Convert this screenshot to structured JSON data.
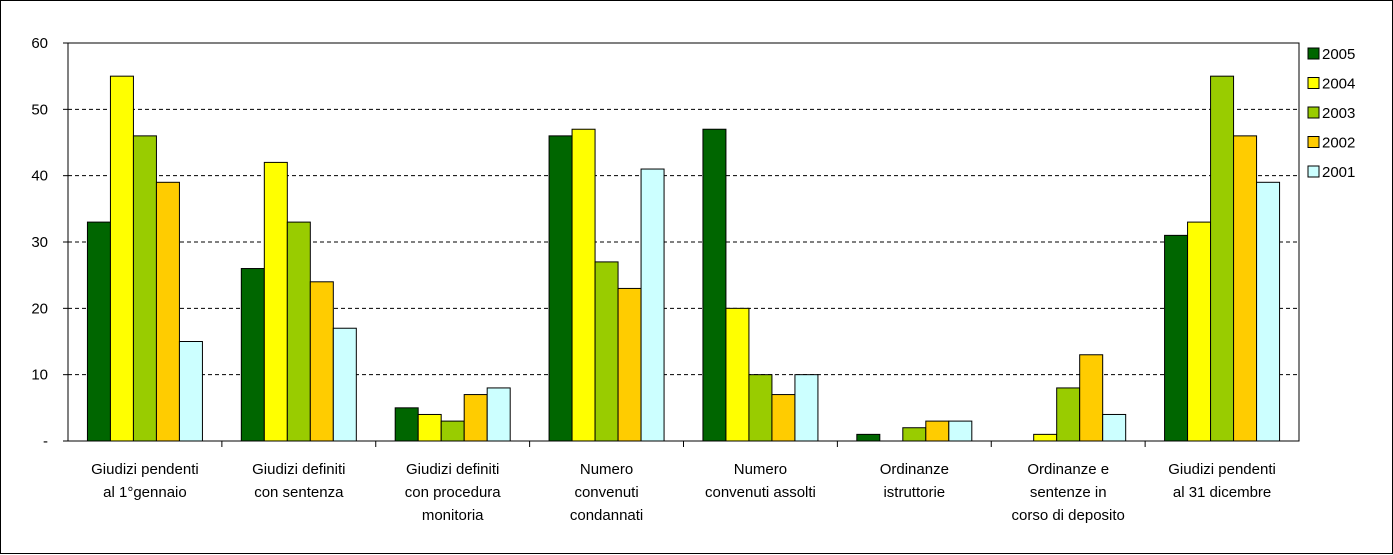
{
  "chart_data": {
    "type": "bar",
    "title": "",
    "xlabel": "",
    "ylabel": "",
    "ylim": [
      0,
      60
    ],
    "yticks": [
      {
        "value": 0,
        "label": "-"
      },
      {
        "value": 10,
        "label": "10"
      },
      {
        "value": 20,
        "label": "20"
      },
      {
        "value": 30,
        "label": "30"
      },
      {
        "value": 40,
        "label": "40"
      },
      {
        "value": 50,
        "label": "50"
      },
      {
        "value": 60,
        "label": "60"
      }
    ],
    "grid": "horizontal-dashed",
    "legend_position": "right",
    "categories": [
      [
        "Giudizi pendenti",
        "al 1°gennaio"
      ],
      [
        "Giudizi definiti",
        "con sentenza"
      ],
      [
        "Giudizi definiti",
        "con procedura",
        "monitoria"
      ],
      [
        "Numero",
        "convenuti",
        "condannati"
      ],
      [
        "Numero",
        "convenuti assolti"
      ],
      [
        "Ordinanze",
        "istruttorie"
      ],
      [
        "Ordinanze e",
        "sentenze in",
        "corso di deposito"
      ],
      [
        "Giudizi pendenti",
        "al 31 dicembre"
      ]
    ],
    "series": [
      {
        "name": "2005",
        "color": "#006600",
        "values": [
          33,
          26,
          5,
          46,
          47,
          1,
          0,
          31
        ]
      },
      {
        "name": "2004",
        "color": "#ffff00",
        "values": [
          55,
          42,
          4,
          47,
          20,
          0,
          1,
          33
        ]
      },
      {
        "name": "2003",
        "color": "#99cc00",
        "values": [
          46,
          33,
          3,
          27,
          10,
          2,
          8,
          55
        ]
      },
      {
        "name": "2002",
        "color": "#ffcc00",
        "values": [
          39,
          24,
          7,
          23,
          7,
          3,
          13,
          46
        ]
      },
      {
        "name": "2001",
        "color": "#ccffff",
        "values": [
          15,
          17,
          8,
          41,
          10,
          3,
          4,
          39
        ]
      }
    ]
  }
}
